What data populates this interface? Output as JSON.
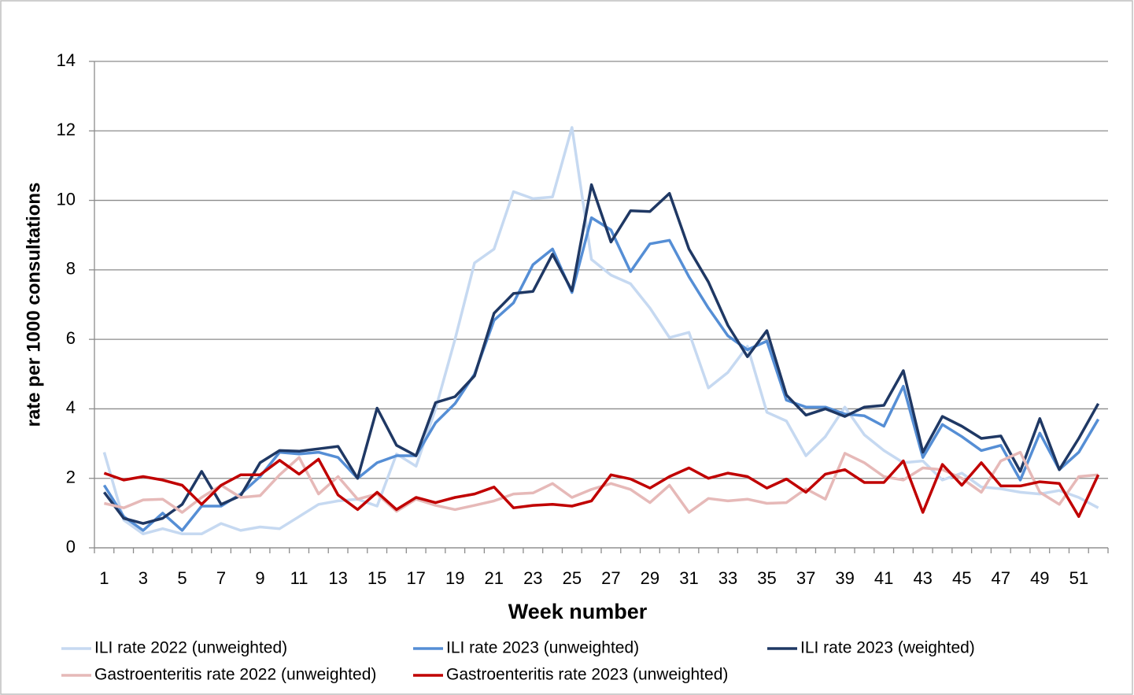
{
  "chart_data": {
    "type": "line",
    "y_label": "rate per 1000 consultations",
    "x_label": "Week number",
    "categories": [
      1,
      null,
      3,
      null,
      5,
      null,
      7,
      null,
      9,
      null,
      11,
      null,
      13,
      null,
      15,
      null,
      17,
      null,
      19,
      null,
      21,
      null,
      23,
      null,
      25,
      null,
      27,
      null,
      29,
      null,
      31,
      null,
      33,
      null,
      35,
      null,
      37,
      null,
      39,
      null,
      41,
      null,
      43,
      null,
      45,
      null,
      47,
      null,
      49,
      null,
      51,
      null
    ],
    "ylim": [
      0,
      14
    ],
    "yticks": [
      0,
      2,
      4,
      6,
      8,
      10,
      12,
      14
    ],
    "grid": true,
    "legend": "bottom",
    "series": [
      {
        "name": "ILI rate 2022 (unweighted)",
        "color": "#c6d9f1",
        "values": [
          2.75,
          0.8,
          0.4,
          0.55,
          0.4,
          0.4,
          0.7,
          0.5,
          0.6,
          0.55,
          0.9,
          1.25,
          1.35,
          1.4,
          1.2,
          2.7,
          2.35,
          4.0,
          6.0,
          8.2,
          8.6,
          10.25,
          10.05,
          10.1,
          12.1,
          8.3,
          7.85,
          7.6,
          6.9,
          6.05,
          6.2,
          4.6,
          5.05,
          5.8,
          3.9,
          3.65,
          2.65,
          3.2,
          4.05,
          3.25,
          2.8,
          2.45,
          2.5,
          1.95,
          2.15,
          1.75,
          1.7,
          1.6,
          1.55,
          1.65,
          1.45,
          1.15
        ]
      },
      {
        "name": "ILI rate 2023 (unweighted)",
        "color": "#558ed5",
        "values": [
          1.8,
          0.9,
          0.5,
          1.0,
          0.5,
          1.2,
          1.2,
          1.55,
          2.05,
          2.75,
          2.7,
          2.75,
          2.6,
          2.0,
          2.45,
          2.65,
          2.65,
          3.6,
          4.15,
          5.0,
          6.55,
          7.05,
          8.15,
          8.6,
          7.35,
          9.5,
          9.15,
          7.95,
          8.75,
          8.85,
          7.8,
          6.9,
          6.1,
          5.7,
          5.95,
          4.25,
          4.05,
          4.05,
          3.85,
          3.8,
          3.5,
          4.65,
          2.6,
          3.55,
          3.2,
          2.8,
          2.95,
          1.95,
          3.3,
          2.25,
          2.75,
          3.7
        ]
      },
      {
        "name": "ILI rate 2023 (weighted)",
        "color": "#1f3864",
        "values": [
          1.6,
          0.85,
          0.7,
          0.85,
          1.25,
          2.2,
          1.25,
          1.5,
          2.45,
          2.8,
          2.78,
          2.85,
          2.92,
          2.0,
          4.02,
          2.95,
          2.65,
          4.18,
          4.35,
          4.95,
          6.75,
          7.32,
          7.38,
          8.45,
          7.4,
          10.45,
          8.8,
          9.7,
          9.68,
          10.2,
          8.6,
          7.65,
          6.4,
          5.5,
          6.25,
          4.4,
          3.82,
          4.0,
          3.78,
          4.05,
          4.1,
          5.1,
          2.75,
          3.78,
          3.5,
          3.15,
          3.22,
          2.2,
          3.72,
          2.25,
          3.15,
          4.15
        ]
      },
      {
        "name": "Gastroenteritis rate 2022 (unweighted)",
        "color": "#e6b9b8",
        "values": [
          1.28,
          1.15,
          1.38,
          1.4,
          1.02,
          1.45,
          1.8,
          1.45,
          1.5,
          2.1,
          2.6,
          1.55,
          2.05,
          1.4,
          1.55,
          1.05,
          1.4,
          1.22,
          1.1,
          1.22,
          1.35,
          1.55,
          1.58,
          1.85,
          1.45,
          1.68,
          1.85,
          1.68,
          1.3,
          1.8,
          1.02,
          1.42,
          1.35,
          1.4,
          1.28,
          1.3,
          1.7,
          1.4,
          2.72,
          2.45,
          2.05,
          1.95,
          2.3,
          2.25,
          2.0,
          1.6,
          2.5,
          2.75,
          1.6,
          1.25,
          2.05,
          2.1
        ]
      },
      {
        "name": "Gastroenteritis rate 2023 (unweighted)",
        "color": "#c00000",
        "values": [
          2.15,
          1.95,
          2.05,
          1.95,
          1.8,
          1.25,
          1.8,
          2.1,
          2.1,
          2.52,
          2.12,
          2.55,
          1.52,
          1.1,
          1.6,
          1.1,
          1.45,
          1.3,
          1.45,
          1.55,
          1.75,
          1.15,
          1.22,
          1.25,
          1.2,
          1.35,
          2.1,
          1.98,
          1.72,
          2.05,
          2.3,
          2.0,
          2.15,
          2.05,
          1.72,
          1.98,
          1.6,
          2.12,
          2.25,
          1.88,
          1.88,
          2.5,
          1.02,
          2.4,
          1.8,
          2.45,
          1.78,
          1.78,
          1.9,
          1.85,
          0.9,
          2.1
        ]
      }
    ]
  }
}
